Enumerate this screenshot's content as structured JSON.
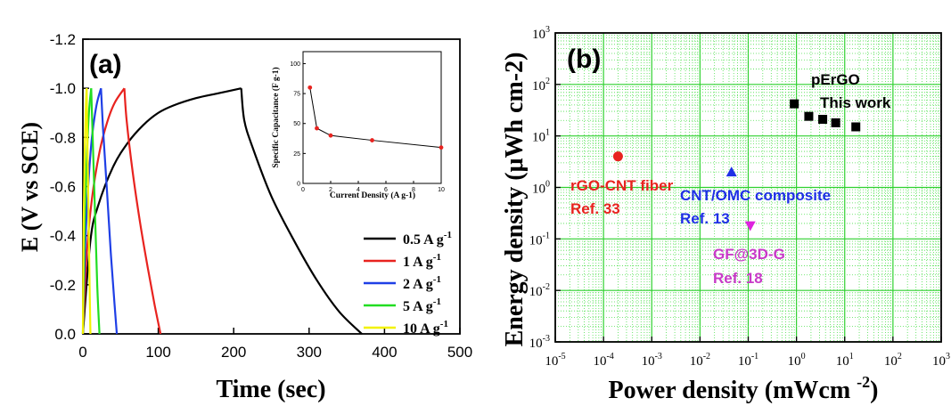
{
  "chart_data": [
    {
      "panel_label": "(a)",
      "type": "line",
      "xlabel": "Time (sec)",
      "ylabel": "E (V vs SCE)",
      "xlim": [
        0,
        500
      ],
      "ylim": [
        0.0,
        -1.2
      ],
      "y_reversed": true,
      "x_ticks": [
        "0",
        "100",
        "200",
        "300",
        "400",
        "500"
      ],
      "y_ticks": [
        "-1.2",
        "-1.0",
        "-0.8",
        "-0.6",
        "-0.4",
        "-0.2",
        "0.0"
      ],
      "legend_position": "bottom-right",
      "series": [
        {
          "name": "0.5 A g-1",
          "color": "#000000",
          "charge_x": [
            0,
            10,
            20,
            40,
            60,
            80,
            100,
            120,
            150,
            180,
            210
          ],
          "charge_y": [
            0.0,
            -0.38,
            -0.52,
            -0.68,
            -0.78,
            -0.85,
            -0.9,
            -0.93,
            -0.96,
            -0.98,
            -1.0
          ],
          "discharge_x": [
            210,
            214,
            225,
            250,
            280,
            310,
            340,
            370
          ],
          "discharge_y": [
            -1.0,
            -0.87,
            -0.76,
            -0.56,
            -0.38,
            -0.22,
            -0.09,
            0.0
          ]
        },
        {
          "name": "1 A g-1",
          "color": "#e8231f",
          "charge_x": [
            0,
            5,
            12,
            22,
            32,
            42,
            55
          ],
          "charge_y": [
            0.0,
            -0.32,
            -0.55,
            -0.74,
            -0.86,
            -0.94,
            -1.0
          ],
          "discharge_x": [
            55,
            58,
            66,
            76,
            86,
            95,
            103
          ],
          "discharge_y": [
            -1.0,
            -0.87,
            -0.66,
            -0.45,
            -0.27,
            -0.12,
            0.0
          ]
        },
        {
          "name": "2 A g-1",
          "color": "#1f3fe6",
          "charge_x": [
            0,
            3,
            7,
            12,
            18,
            24
          ],
          "charge_y": [
            0.0,
            -0.35,
            -0.6,
            -0.8,
            -0.93,
            -1.0
          ],
          "discharge_x": [
            24,
            27,
            32,
            37,
            42,
            45
          ],
          "discharge_y": [
            -1.0,
            -0.82,
            -0.58,
            -0.33,
            -0.12,
            0.0
          ]
        },
        {
          "name": "5 A g-1",
          "color": "#22dd22",
          "charge_x": [
            0,
            2,
            5,
            8,
            11
          ],
          "charge_y": [
            0.0,
            -0.4,
            -0.7,
            -0.9,
            -1.0
          ],
          "discharge_x": [
            11,
            13,
            16,
            19,
            22
          ],
          "discharge_y": [
            -1.0,
            -0.8,
            -0.5,
            -0.2,
            0.0
          ]
        },
        {
          "name": "10 A g-1",
          "color": "#f2f200",
          "charge_x": [
            0,
            1,
            2.5,
            4,
            5
          ],
          "charge_y": [
            0.0,
            -0.45,
            -0.75,
            -0.93,
            -1.0
          ],
          "discharge_x": [
            5,
            6,
            7.5,
            9,
            10
          ],
          "discharge_y": [
            -1.0,
            -0.78,
            -0.48,
            -0.18,
            0.0
          ]
        }
      ],
      "inset": {
        "type": "line",
        "xlabel": "Current Density (A g-1)",
        "ylabel": "Specific Capacitance (F g-1)",
        "xlim": [
          0,
          10
        ],
        "ylim": [
          0,
          110
        ],
        "x_ticks": [
          "0",
          "2",
          "4",
          "6",
          "8",
          "10"
        ],
        "y_ticks": [
          "0",
          "25",
          "50",
          "75",
          "100"
        ],
        "x": [
          0.5,
          1,
          2,
          5,
          10
        ],
        "y": [
          80,
          46,
          40,
          36,
          30
        ]
      }
    },
    {
      "panel_label": "(b)",
      "type": "scatter",
      "xlabel": "Power density (mWcm-2)",
      "ylabel": "Energy density (μWh cm-2)",
      "x_scale": "log",
      "y_scale": "log",
      "xlim": [
        1e-05,
        1000
      ],
      "ylim": [
        0.001,
        1000
      ],
      "grid": true,
      "x_ticks": [
        "10-5",
        "10-4",
        "10-3",
        "10-2",
        "10-1",
        "100",
        "101",
        "102",
        "103"
      ],
      "y_ticks": [
        "10-3",
        "10-2",
        "10-1",
        "100",
        "101",
        "102",
        "103"
      ],
      "series": [
        {
          "name": "pErGO",
          "ref": "This work",
          "color": "#000000",
          "marker": "square",
          "x": [
            0.9,
            1.8,
            3.5,
            6.5,
            17
          ],
          "y": [
            42,
            24,
            21,
            18,
            15
          ]
        },
        {
          "name": "rGO-CNT fiber",
          "ref": "Ref. 33",
          "color": "#e8231f",
          "marker": "circle",
          "x": [
            0.0002
          ],
          "y": [
            4
          ]
        },
        {
          "name": "CNT/OMC composite",
          "ref": "Ref. 13",
          "color": "#1f2fe6",
          "marker": "triangle-up",
          "x": [
            0.045
          ],
          "y": [
            2
          ]
        },
        {
          "name": "GF@3D-G",
          "ref": "Ref. 18",
          "color": "#dd22dd",
          "marker": "triangle-down",
          "x": [
            0.11
          ],
          "y": [
            0.18
          ]
        }
      ]
    }
  ]
}
